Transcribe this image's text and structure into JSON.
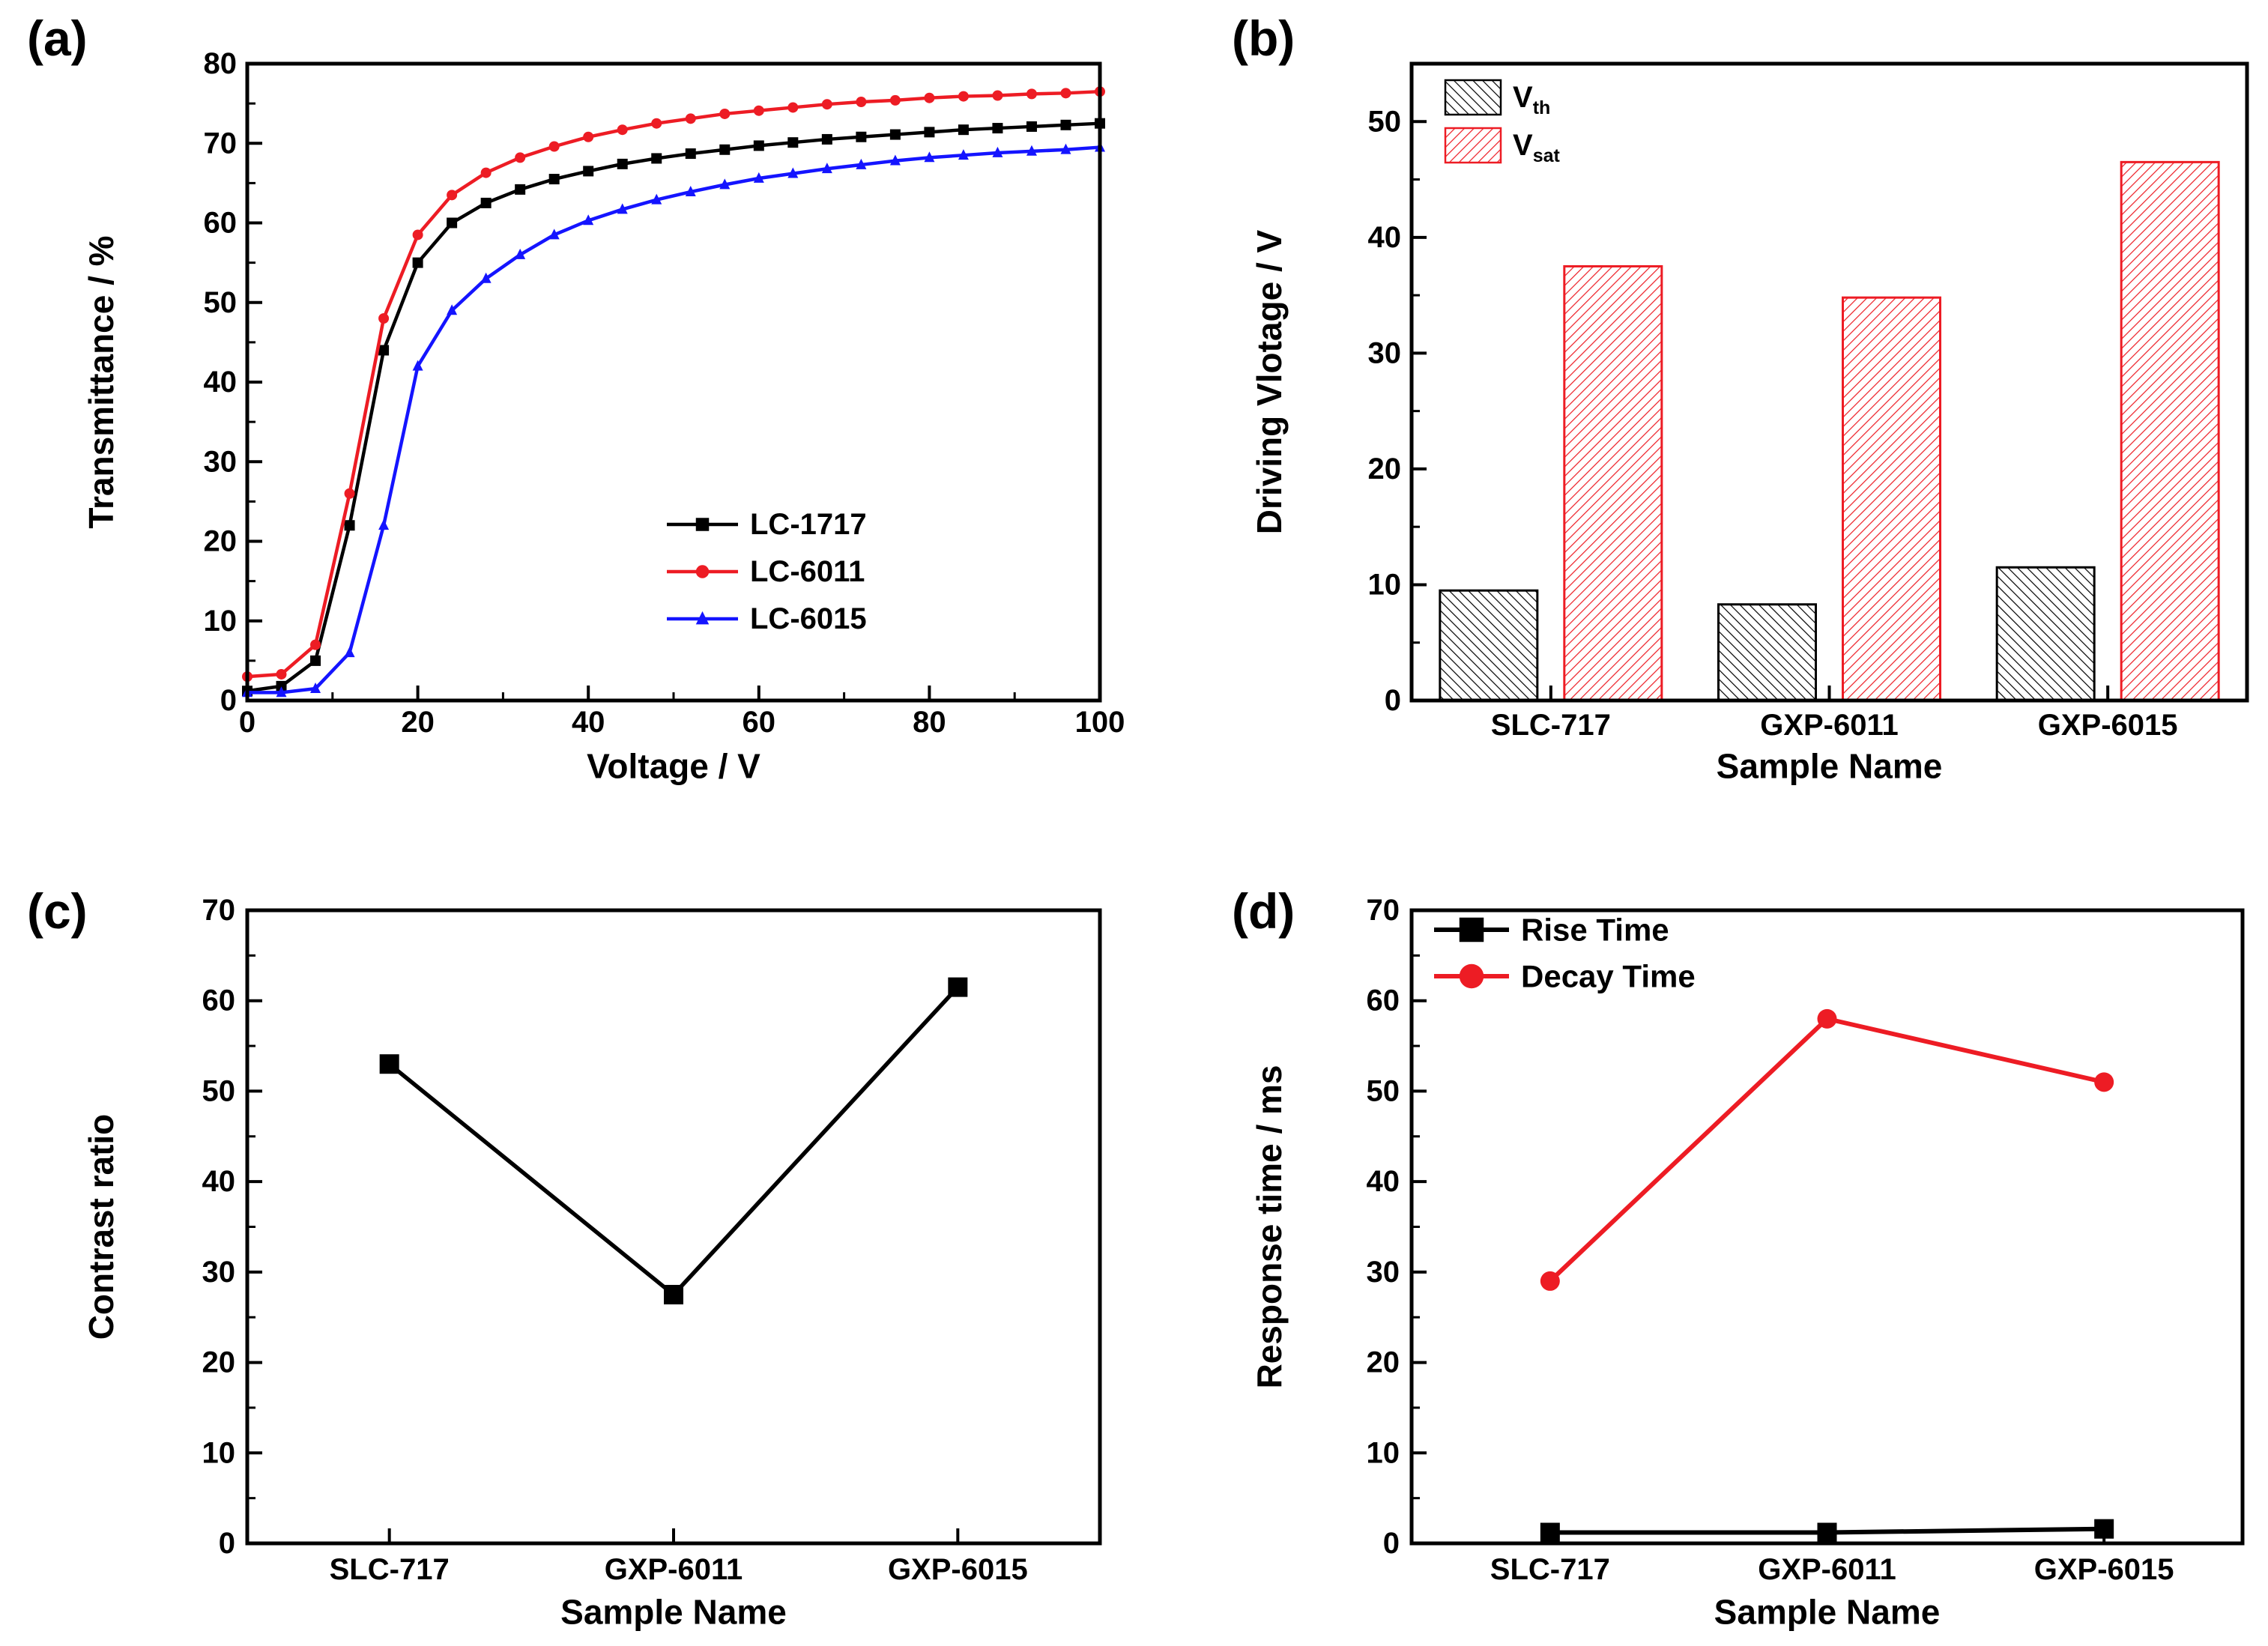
{
  "figure": {
    "background": "#ffffff"
  },
  "colors": {
    "black": "#000000",
    "red": "#ed1c24",
    "blue": "#1414ff"
  },
  "chart_data": [
    {
      "panel": "(a)",
      "type": "line",
      "xlabel": "Voltage / V",
      "ylabel": "Transmittance / %",
      "xlim": [
        0,
        100
      ],
      "ylim": [
        0,
        80
      ],
      "xticks": [
        0,
        20,
        40,
        60,
        80,
        100
      ],
      "yticks": [
        0,
        10,
        20,
        30,
        40,
        50,
        60,
        70,
        80
      ],
      "legend_position": "right-middle",
      "x": [
        0,
        4,
        8,
        12,
        16,
        20,
        24,
        28,
        32,
        36,
        40,
        44,
        48,
        52,
        56,
        60,
        64,
        68,
        72,
        76,
        80,
        84,
        88,
        92,
        96,
        100
      ],
      "series": [
        {
          "name": "LC-1717",
          "color": "#000000",
          "marker": "square",
          "values": [
            1.2,
            1.8,
            5,
            22,
            44,
            55,
            60,
            62.5,
            64.2,
            65.5,
            66.5,
            67.4,
            68.1,
            68.7,
            69.2,
            69.7,
            70.1,
            70.5,
            70.8,
            71.1,
            71.4,
            71.7,
            71.9,
            72.1,
            72.3,
            72.5
          ]
        },
        {
          "name": "LC-6011",
          "color": "#ed1c24",
          "marker": "circle",
          "values": [
            3,
            3.3,
            7,
            26,
            48,
            58.5,
            63.5,
            66.3,
            68.2,
            69.6,
            70.8,
            71.7,
            72.5,
            73.1,
            73.7,
            74.1,
            74.5,
            74.9,
            75.2,
            75.4,
            75.7,
            75.9,
            76,
            76.2,
            76.3,
            76.5
          ]
        },
        {
          "name": "LC-6015",
          "color": "#1414ff",
          "marker": "triangle",
          "values": [
            1,
            1,
            1.5,
            6,
            22,
            42,
            49,
            53,
            56,
            58.5,
            60.3,
            61.7,
            62.9,
            63.9,
            64.8,
            65.6,
            66.2,
            66.8,
            67.3,
            67.8,
            68.2,
            68.5,
            68.8,
            69,
            69.2,
            69.5
          ]
        }
      ]
    },
    {
      "panel": "(b)",
      "type": "bar",
      "xlabel": "Sample Name",
      "ylabel": "Driving Vlotage / V",
      "categories": [
        "SLC-717",
        "GXP-6011",
        "GXP-6015"
      ],
      "ylim": [
        0,
        55
      ],
      "yticks": [
        0,
        10,
        20,
        30,
        40,
        50
      ],
      "legend_position": "top-left",
      "series": [
        {
          "name": "V",
          "sub": "th",
          "color": "#000000",
          "hatch": "desc",
          "values": [
            9.5,
            8.3,
            11.5
          ]
        },
        {
          "name": "V",
          "sub": "sat",
          "color": "#ed1c24",
          "hatch": "asc",
          "values": [
            37.5,
            34.8,
            46.5
          ]
        }
      ]
    },
    {
      "panel": "(c)",
      "type": "line",
      "xlabel": "Sample Name",
      "ylabel": "Contrast ratio",
      "categories": [
        "SLC-717",
        "GXP-6011",
        "GXP-6015"
      ],
      "ylim": [
        0,
        70
      ],
      "yticks": [
        0,
        10,
        20,
        30,
        40,
        50,
        60,
        70
      ],
      "legend_position": "none",
      "series": [
        {
          "name": "Contrast ratio",
          "color": "#000000",
          "marker": "square",
          "values": [
            53,
            27.5,
            61.5
          ]
        }
      ]
    },
    {
      "panel": "(d)",
      "type": "line",
      "xlabel": "Sample Name",
      "ylabel": "Response time / ms",
      "categories": [
        "SLC-717",
        "GXP-6011",
        "GXP-6015"
      ],
      "ylim": [
        0,
        70
      ],
      "yticks": [
        0,
        10,
        20,
        30,
        40,
        50,
        60,
        70
      ],
      "legend_position": "top-left",
      "series": [
        {
          "name": "Rise Time",
          "color": "#000000",
          "marker": "square",
          "values": [
            1.2,
            1.2,
            1.6
          ]
        },
        {
          "name": "Decay Time",
          "color": "#ed1c24",
          "marker": "circle",
          "values": [
            29,
            58,
            51
          ]
        }
      ]
    }
  ]
}
